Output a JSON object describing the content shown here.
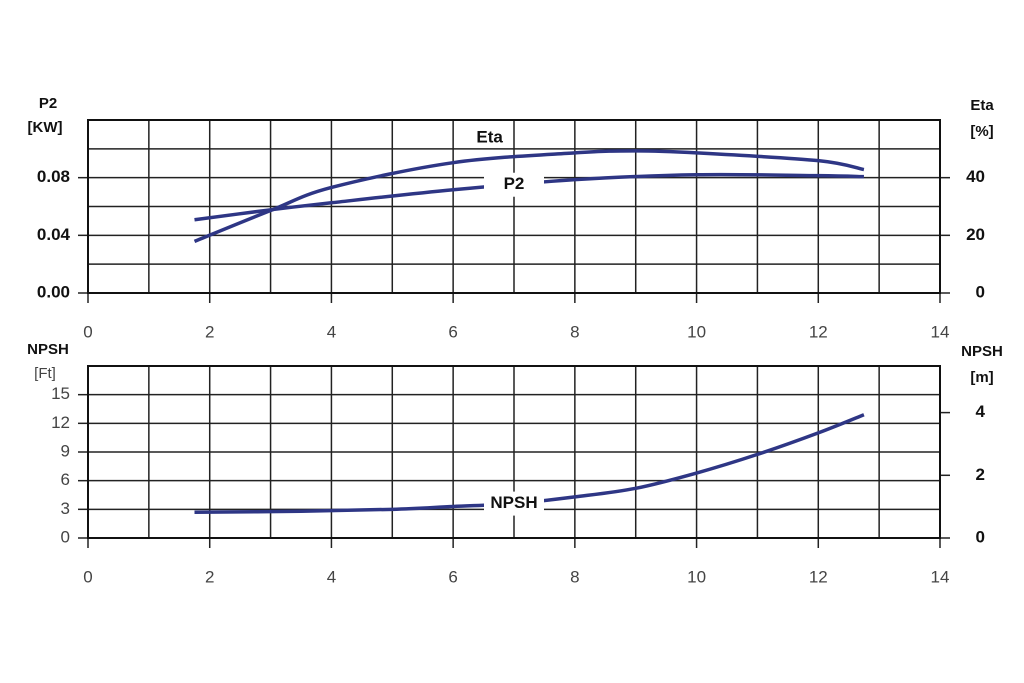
{
  "chart_data": [
    {
      "type": "line",
      "ylabel": "P2",
      "yunit": "[KW]",
      "y2label": "Eta",
      "y2unit": "[%]",
      "xlim": [
        0,
        14
      ],
      "xticks": [
        0,
        2,
        4,
        6,
        8,
        10,
        12,
        14
      ],
      "minor_xticks": [
        1,
        3,
        5,
        7,
        9,
        11,
        13
      ],
      "ylim": [
        0,
        0.12
      ],
      "yticks": [
        {
          "value": 0,
          "label": "0.00"
        },
        0.04,
        0.08
      ],
      "minor_yticks": [
        0.02,
        0.06,
        0.1,
        0.12
      ],
      "y2lim": [
        0,
        60
      ],
      "y2ticks": [
        0,
        20,
        40
      ],
      "grid": true,
      "series": [
        {
          "name": "Eta",
          "color": "#2e3685",
          "axis": "y2",
          "x": [
            1.75,
            3,
            4,
            6,
            8,
            9,
            10,
            12,
            12.75
          ],
          "values": [
            17.9,
            28.6,
            36.6,
            45.2,
            48.6,
            49.3,
            48.6,
            45.9,
            42.8
          ]
        },
        {
          "name": "P2",
          "color": "#2e3685",
          "x": [
            1.75,
            3,
            4,
            6,
            8,
            10,
            12,
            12.75
          ],
          "values": [
            0.0508,
            0.0577,
            0.0626,
            0.0716,
            0.0786,
            0.082,
            0.0814,
            0.0807
          ]
        }
      ]
    },
    {
      "type": "line",
      "ylabel": "NPSH",
      "yunit": "[Ft]",
      "y2label": "NPSH",
      "y2unit": "[m]",
      "xlim": [
        0,
        14
      ],
      "xticks": [
        0,
        2,
        4,
        6,
        8,
        10,
        12,
        14
      ],
      "minor_xticks": [
        1,
        3,
        5,
        7,
        9,
        11,
        13
      ],
      "ylim": [
        0,
        18
      ],
      "yticks": [
        0,
        3,
        6,
        9,
        12,
        15
      ],
      "minor_yticks": [
        18
      ],
      "y2lim": [
        0,
        5.4864
      ],
      "y2ticks": [
        0,
        2,
        4
      ],
      "grid": true,
      "series": [
        {
          "name": "NPSH",
          "color": "#2e3685",
          "x": [
            1.75,
            3.5,
            5,
            6,
            7,
            8,
            9,
            10,
            11,
            12,
            12.75
          ],
          "values": [
            2.7,
            2.8,
            3.0,
            3.3,
            3.6,
            4.3,
            5.2,
            6.8,
            8.75,
            11.0,
            12.9
          ]
        }
      ]
    }
  ]
}
